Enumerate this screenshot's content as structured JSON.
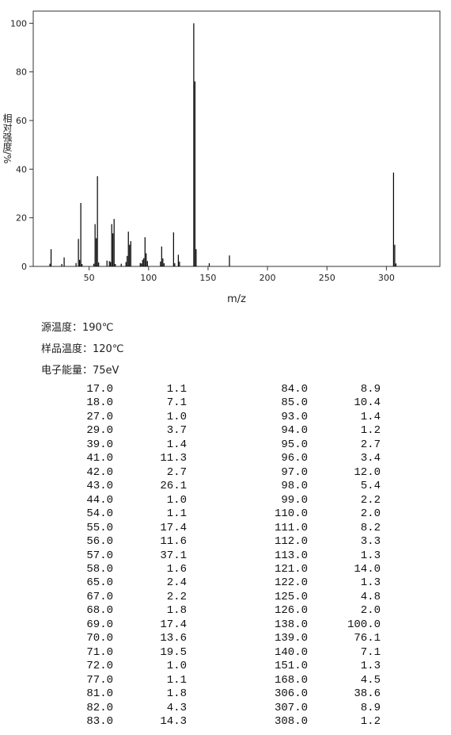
{
  "chart_data": {
    "type": "bar",
    "x_label": "m/z",
    "y_label": "相对强度/%",
    "x": [
      17,
      18,
      27,
      29,
      39,
      41,
      42,
      43,
      44,
      54,
      55,
      56,
      57,
      58,
      65,
      67,
      68,
      69,
      70,
      71,
      72,
      77,
      81,
      82,
      83,
      84,
      85,
      93,
      94,
      95,
      96,
      97,
      98,
      99,
      110,
      111,
      112,
      113,
      121,
      122,
      125,
      126,
      138,
      139,
      140,
      151,
      168,
      306,
      307,
      308
    ],
    "values": [
      1.1,
      7.1,
      1.0,
      3.7,
      1.4,
      11.3,
      2.7,
      26.1,
      1.0,
      1.1,
      17.4,
      11.6,
      37.1,
      1.6,
      2.4,
      2.2,
      1.8,
      17.4,
      13.6,
      19.5,
      1.0,
      1.1,
      1.8,
      4.3,
      14.3,
      8.9,
      10.4,
      1.4,
      1.2,
      2.7,
      3.4,
      12.0,
      5.4,
      2.2,
      2.0,
      8.2,
      3.3,
      1.3,
      14.0,
      1.3,
      4.8,
      2.0,
      100.0,
      76.1,
      7.1,
      1.3,
      4.5,
      38.6,
      8.9,
      1.2
    ],
    "color": "#000000",
    "xlim": [
      3,
      345
    ],
    "xticks": [
      50,
      100,
      150,
      200,
      250,
      300
    ],
    "ylim": [
      0,
      105
    ],
    "yticks": [
      0,
      20,
      40,
      60,
      80,
      100
    ]
  },
  "info": [
    "源温度：190℃",
    "样品温度：120℃",
    "电子能量：75eV"
  ],
  "table": {
    "rows": [
      [
        "17.0",
        "1.1",
        "84.0",
        "8.9"
      ],
      [
        "18.0",
        "7.1",
        "85.0",
        "10.4"
      ],
      [
        "27.0",
        "1.0",
        "93.0",
        "1.4"
      ],
      [
        "29.0",
        "3.7",
        "94.0",
        "1.2"
      ],
      [
        "39.0",
        "1.4",
        "95.0",
        "2.7"
      ],
      [
        "41.0",
        "11.3",
        "96.0",
        "3.4"
      ],
      [
        "42.0",
        "2.7",
        "97.0",
        "12.0"
      ],
      [
        "43.0",
        "26.1",
        "98.0",
        "5.4"
      ],
      [
        "44.0",
        "1.0",
        "99.0",
        "2.2"
      ],
      [
        "54.0",
        "1.1",
        "110.0",
        "2.0"
      ],
      [
        "55.0",
        "17.4",
        "111.0",
        "8.2"
      ],
      [
        "56.0",
        "11.6",
        "112.0",
        "3.3"
      ],
      [
        "57.0",
        "37.1",
        "113.0",
        "1.3"
      ],
      [
        "58.0",
        "1.6",
        "121.0",
        "14.0"
      ],
      [
        "65.0",
        "2.4",
        "122.0",
        "1.3"
      ],
      [
        "67.0",
        "2.2",
        "125.0",
        "4.8"
      ],
      [
        "68.0",
        "1.8",
        "126.0",
        "2.0"
      ],
      [
        "69.0",
        "17.4",
        "138.0",
        "100.0"
      ],
      [
        "70.0",
        "13.6",
        "139.0",
        "76.1"
      ],
      [
        "71.0",
        "19.5",
        "140.0",
        "7.1"
      ],
      [
        "72.0",
        "1.0",
        "151.0",
        "1.3"
      ],
      [
        "77.0",
        "1.1",
        "168.0",
        "4.5"
      ],
      [
        "81.0",
        "1.8",
        "306.0",
        "38.6"
      ],
      [
        "82.0",
        "4.3",
        "307.0",
        "8.9"
      ],
      [
        "83.0",
        "14.3",
        "308.0",
        "1.2"
      ]
    ]
  }
}
